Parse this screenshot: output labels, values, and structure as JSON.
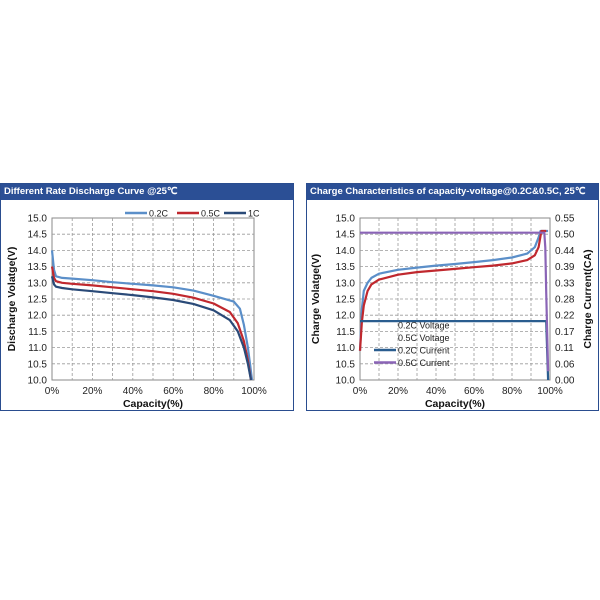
{
  "panels": {
    "left": {
      "title": "Different Rate Discharge Curve @25℃"
    },
    "right": {
      "title": "Charge  Characteristics of capacity-voltage@0.2C&0.5C, 25℃"
    }
  },
  "chart_data": [
    {
      "type": "line",
      "title": "Different Rate Discharge Curve @25℃",
      "xlabel": "Capacity(%)",
      "ylabel": "Discharge Volatge(V)",
      "xlim": [
        0,
        100
      ],
      "ylim": [
        10.0,
        15.0
      ],
      "x_ticks": [
        "0%",
        "20%",
        "40%",
        "60%",
        "80%",
        "100%"
      ],
      "y_ticks": [
        "10.0",
        "10.5",
        "11.0",
        "11.5",
        "12.0",
        "12.5",
        "13.0",
        "13.5",
        "14.0",
        "14.5",
        "15.0"
      ],
      "grid": true,
      "legend_position": "top",
      "series": [
        {
          "name": "0.2C",
          "color": "#5b8fc9",
          "points": [
            [
              0,
              14.0
            ],
            [
              1,
              13.4
            ],
            [
              2,
              13.2
            ],
            [
              5,
              13.15
            ],
            [
              10,
              13.13
            ],
            [
              20,
              13.08
            ],
            [
              30,
              13.02
            ],
            [
              40,
              12.97
            ],
            [
              50,
              12.92
            ],
            [
              60,
              12.86
            ],
            [
              70,
              12.76
            ],
            [
              80,
              12.6
            ],
            [
              90,
              12.42
            ],
            [
              93,
              12.2
            ],
            [
              95,
              11.7
            ],
            [
              97,
              11.0
            ],
            [
              98,
              10.5
            ],
            [
              99,
              10.0
            ]
          ]
        },
        {
          "name": "0.5C",
          "color": "#c0282e",
          "points": [
            [
              0,
              13.5
            ],
            [
              1,
              13.15
            ],
            [
              2,
              13.05
            ],
            [
              5,
              13.0
            ],
            [
              10,
              12.97
            ],
            [
              20,
              12.92
            ],
            [
              30,
              12.86
            ],
            [
              40,
              12.8
            ],
            [
              50,
              12.74
            ],
            [
              60,
              12.66
            ],
            [
              70,
              12.54
            ],
            [
              80,
              12.36
            ],
            [
              88,
              12.1
            ],
            [
              92,
              11.75
            ],
            [
              95,
              11.2
            ],
            [
              97,
              10.6
            ],
            [
              98.5,
              10.0
            ]
          ]
        },
        {
          "name": "1C",
          "color": "#2a4a78",
          "points": [
            [
              0,
              13.2
            ],
            [
              1,
              12.95
            ],
            [
              2,
              12.88
            ],
            [
              5,
              12.84
            ],
            [
              10,
              12.8
            ],
            [
              20,
              12.74
            ],
            [
              30,
              12.68
            ],
            [
              40,
              12.62
            ],
            [
              50,
              12.55
            ],
            [
              60,
              12.47
            ],
            [
              70,
              12.35
            ],
            [
              80,
              12.15
            ],
            [
              88,
              11.85
            ],
            [
              92,
              11.5
            ],
            [
              95,
              11.0
            ],
            [
              97,
              10.5
            ],
            [
              98.5,
              10.0
            ]
          ]
        }
      ]
    },
    {
      "type": "line",
      "title": "Charge  Characteristics of capacity-voltage@0.2C&0.5C, 25℃",
      "xlabel": "Capacity(%)",
      "ylabel": "Charge Volatge(V)",
      "ylabel_right": "Charge Current(CA)",
      "xlim": [
        0,
        100
      ],
      "ylim": [
        10.0,
        15.0
      ],
      "ylim_right": [
        0.0,
        0.55
      ],
      "x_ticks": [
        "0%",
        "20%",
        "40%",
        "60%",
        "80%",
        "100%"
      ],
      "y_ticks": [
        "10.0",
        "10.5",
        "11.0",
        "11.5",
        "12.0",
        "12.5",
        "13.0",
        "13.5",
        "14.0",
        "14.5",
        "15.0"
      ],
      "y_ticks_right": [
        "0.00",
        "0.06",
        "0.11",
        "0.17",
        "0.22",
        "0.28",
        "0.33",
        "0.39",
        "0.44",
        "0.50",
        "0.55"
      ],
      "grid": true,
      "legend_position": "bottom-left",
      "series": [
        {
          "name": "0.2C Voltage",
          "axis": "left",
          "color": "#5b8fc9",
          "points": [
            [
              0,
              10.9
            ],
            [
              1,
              12.2
            ],
            [
              2,
              12.75
            ],
            [
              4,
              13.0
            ],
            [
              6,
              13.15
            ],
            [
              10,
              13.28
            ],
            [
              20,
              13.4
            ],
            [
              30,
              13.47
            ],
            [
              40,
              13.53
            ],
            [
              50,
              13.58
            ],
            [
              60,
              13.64
            ],
            [
              70,
              13.7
            ],
            [
              80,
              13.78
            ],
            [
              88,
              13.9
            ],
            [
              92,
              14.1
            ],
            [
              94,
              14.4
            ],
            [
              95,
              14.6
            ],
            [
              99,
              14.6
            ]
          ]
        },
        {
          "name": "0.5C Voltage",
          "axis": "left",
          "color": "#c0282e",
          "points": [
            [
              0,
              10.9
            ],
            [
              1,
              11.8
            ],
            [
              2,
              12.3
            ],
            [
              4,
              12.75
            ],
            [
              6,
              12.95
            ],
            [
              10,
              13.1
            ],
            [
              20,
              13.25
            ],
            [
              30,
              13.33
            ],
            [
              40,
              13.38
            ],
            [
              50,
              13.43
            ],
            [
              60,
              13.48
            ],
            [
              70,
              13.53
            ],
            [
              80,
              13.6
            ],
            [
              88,
              13.7
            ],
            [
              92,
              13.85
            ],
            [
              94,
              14.1
            ],
            [
              95.5,
              14.6
            ],
            [
              98,
              14.6
            ]
          ]
        },
        {
          "name": "0.2C Current",
          "axis": "right",
          "color": "#2a5d8f",
          "points": [
            [
              0,
              0.2
            ],
            [
              98,
              0.2
            ],
            [
              99,
              0.0
            ]
          ]
        },
        {
          "name": "0.5C Current",
          "axis": "right",
          "color": "#8a64b6",
          "points": [
            [
              0,
              0.5
            ],
            [
              97,
              0.5
            ],
            [
              97.5,
              0.45
            ],
            [
              98,
              0.3
            ],
            [
              99,
              0.03
            ]
          ]
        }
      ]
    }
  ]
}
